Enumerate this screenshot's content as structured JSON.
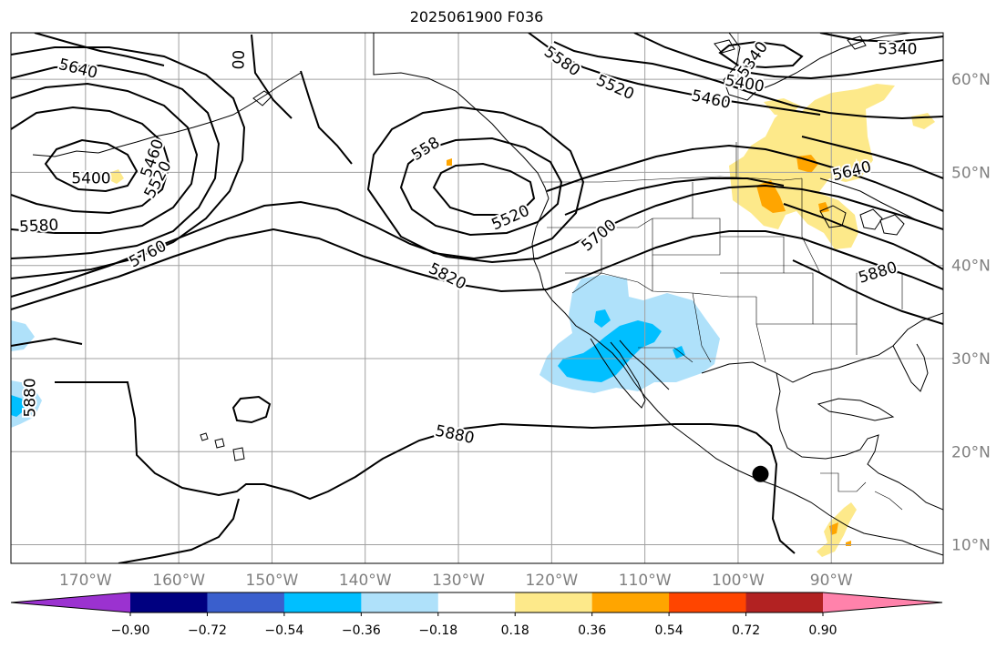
{
  "title": "2025061900 F036",
  "chart_data": {
    "type": "contour_map",
    "title": "2025061900 F036",
    "map_extent": {
      "lon": [
        -178,
        -78
      ],
      "lat": [
        8,
        65
      ]
    },
    "lon_ticks": [
      {
        "value": -170,
        "label": "170°W"
      },
      {
        "value": -160,
        "label": "160°W"
      },
      {
        "value": -150,
        "label": "150°W"
      },
      {
        "value": -140,
        "label": "140°W"
      },
      {
        "value": -130,
        "label": "130°W"
      },
      {
        "value": -120,
        "label": "120°W"
      },
      {
        "value": -110,
        "label": "110°W"
      },
      {
        "value": -100,
        "label": "100°W"
      },
      {
        "value": -90,
        "label": "90°W"
      }
    ],
    "lat_ticks": [
      {
        "value": 10,
        "label": "10°N"
      },
      {
        "value": 20,
        "label": "20°N"
      },
      {
        "value": 30,
        "label": "30°N"
      },
      {
        "value": 40,
        "label": "40°N"
      },
      {
        "value": 50,
        "label": "50°N"
      },
      {
        "value": 60,
        "label": "60°N"
      }
    ],
    "grid": true,
    "contour_labels": [
      {
        "text": "5640",
        "lon": -170.8,
        "lat": 61.1,
        "rot": 14
      },
      {
        "text": "00",
        "lon": -153.5,
        "lat": 62.1,
        "rot": -88
      },
      {
        "text": "5400",
        "lon": -169.4,
        "lat": 49.3,
        "rot": 0
      },
      {
        "text": "5460",
        "lon": -162.8,
        "lat": 51.5,
        "rot": -70
      },
      {
        "text": "5520",
        "lon": -162.2,
        "lat": 49.2,
        "rot": -62
      },
      {
        "text": "5580",
        "lon": -175.0,
        "lat": 44.2,
        "rot": -3
      },
      {
        "text": "5760",
        "lon": -163.3,
        "lat": 41.2,
        "rot": -28
      },
      {
        "text": "5880",
        "lon": -175.9,
        "lat": 25.8,
        "rot": -90
      },
      {
        "text": "558",
        "lon": -133.5,
        "lat": 52.5,
        "rot": -32
      },
      {
        "text": "5520",
        "lon": -124.4,
        "lat": 45.1,
        "rot": -24
      },
      {
        "text": "5700",
        "lon": -114.9,
        "lat": 43.2,
        "rot": -40
      },
      {
        "text": "5820",
        "lon": -131.2,
        "lat": 38.8,
        "rot": 27
      },
      {
        "text": "5880",
        "lon": -130.4,
        "lat": 21.8,
        "rot": 12
      },
      {
        "text": "5580",
        "lon": -118.9,
        "lat": 61.9,
        "rot": 35
      },
      {
        "text": "5520",
        "lon": -113.2,
        "lat": 59.1,
        "rot": 24
      },
      {
        "text": "5460",
        "lon": -102.9,
        "lat": 57.8,
        "rot": 12
      },
      {
        "text": "5400",
        "lon": -99.3,
        "lat": 59.5,
        "rot": 10
      },
      {
        "text": "5340",
        "lon": -98.4,
        "lat": 62.1,
        "rot": -55
      },
      {
        "text": "5340",
        "lon": -82.9,
        "lat": 63.2,
        "rot": 0
      },
      {
        "text": "5640",
        "lon": -87.8,
        "lat": 50.1,
        "rot": -14
      },
      {
        "text": "5880",
        "lon": -85.0,
        "lat": 39.2,
        "rot": -17
      }
    ],
    "marker": {
      "type": "dot",
      "lon": -97.6,
      "lat": 17.6
    },
    "colorbar": {
      "ticks": [
        -0.9,
        -0.72,
        -0.54,
        -0.36,
        -0.18,
        0.18,
        0.36,
        0.54,
        0.72,
        0.9
      ],
      "tick_labels": [
        "−0.90",
        "−0.72",
        "−0.54",
        "−0.36",
        "−0.18",
        "0.18",
        "0.36",
        "0.54",
        "0.72",
        "0.90"
      ],
      "colors": [
        "#9b32d0",
        "#000080",
        "#3a5fcd",
        "#00bfff",
        "#afe1fa",
        "#ffffff",
        "#fde98a",
        "#ffa500",
        "#ff4500",
        "#b22222",
        "#ff82ab"
      ]
    }
  }
}
